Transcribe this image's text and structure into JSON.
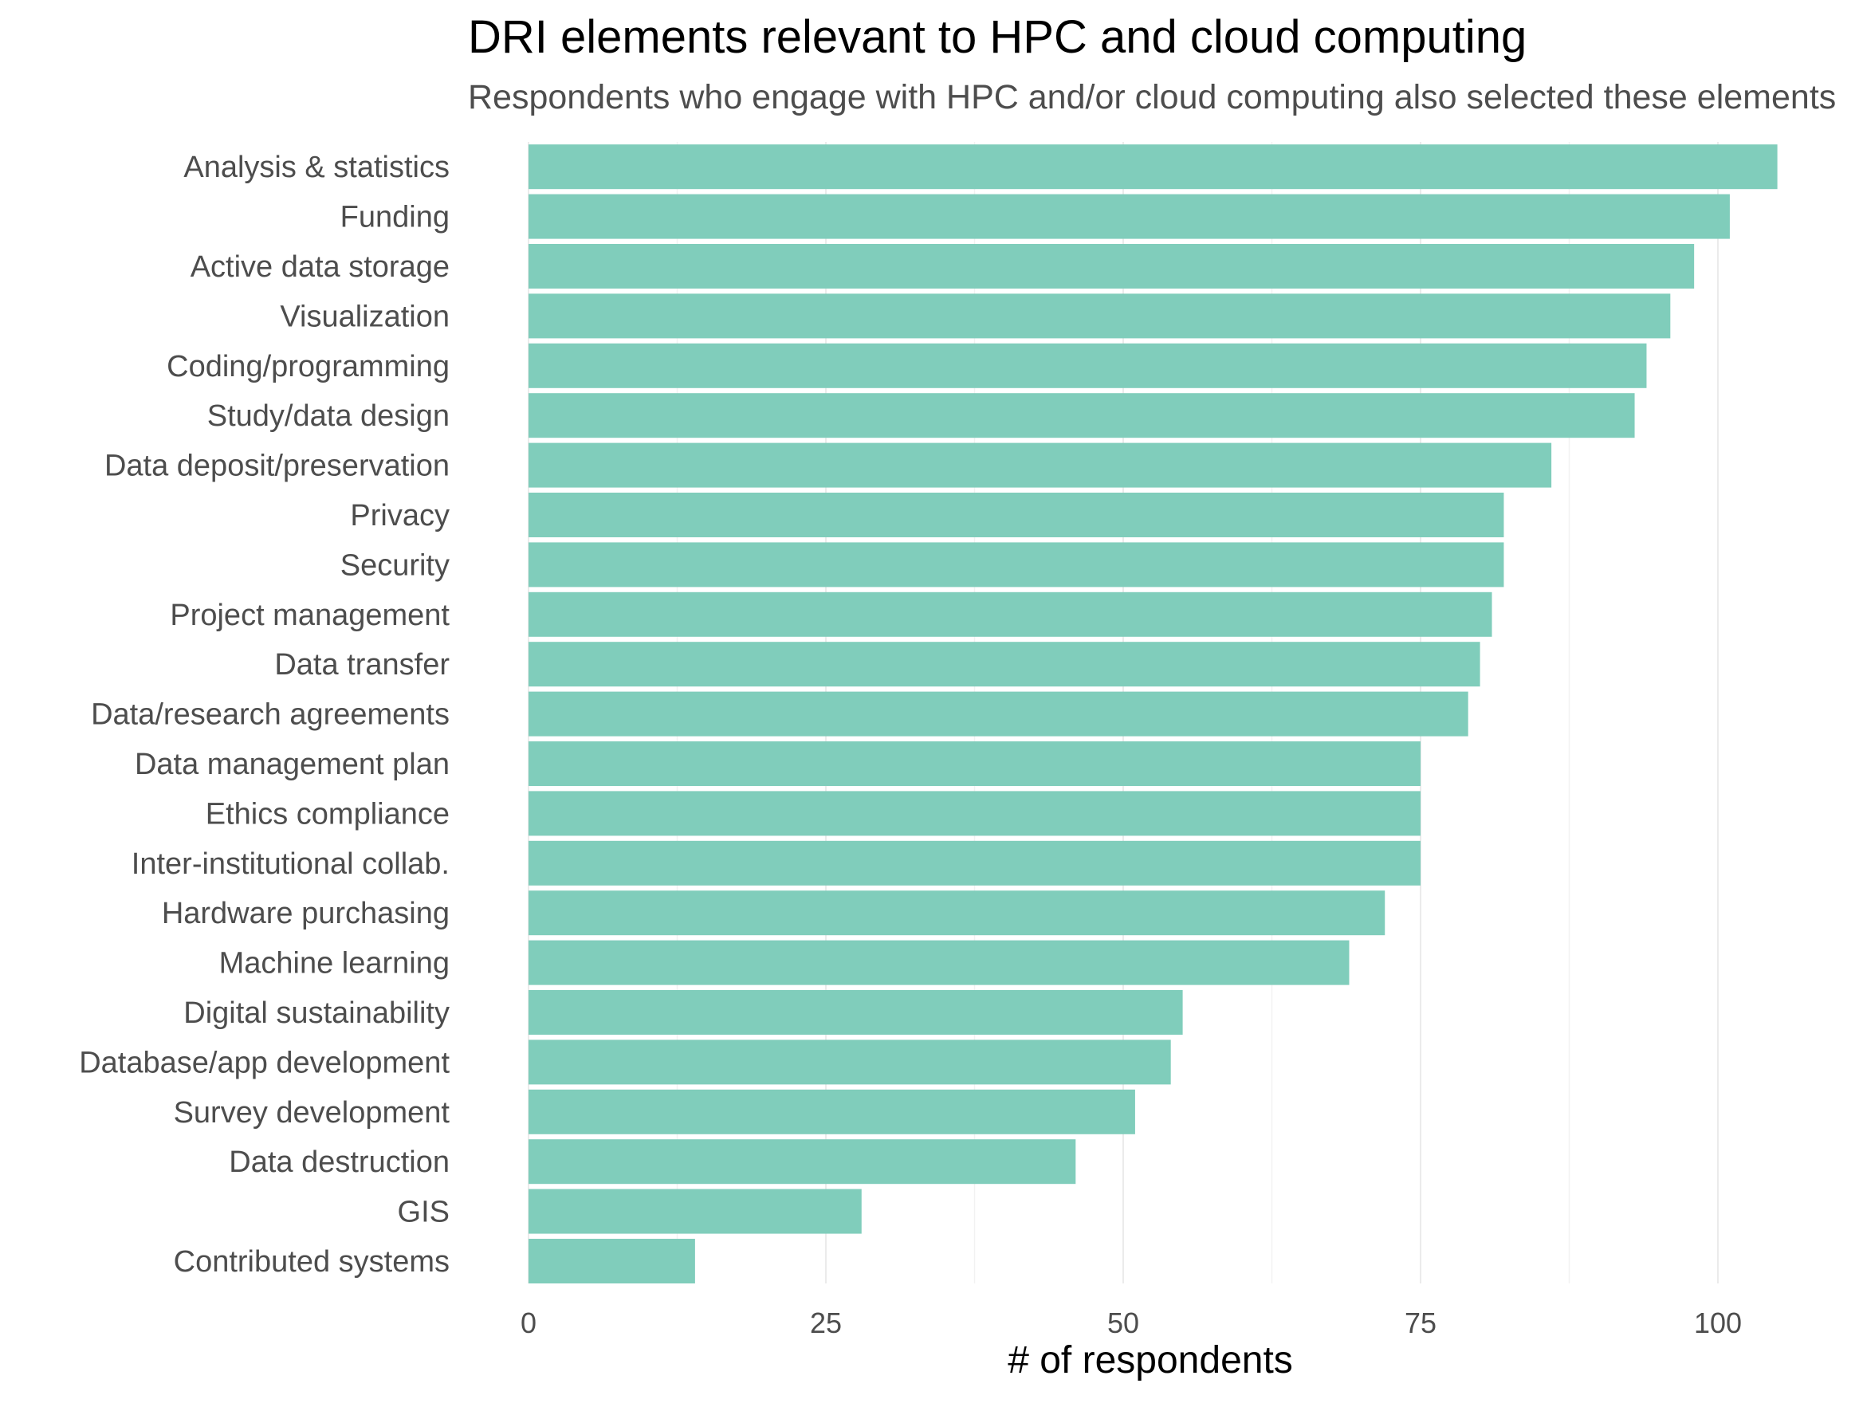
{
  "chart_data": {
    "type": "bar",
    "orientation": "horizontal",
    "title": "DRI elements relevant to HPC and cloud computing",
    "subtitle": "Respondents who engage with HPC and/or cloud computing also selected these elements",
    "xlabel": "# of respondents",
    "ylabel": "",
    "xlim": [
      0,
      106
    ],
    "xticks": [
      0,
      25,
      50,
      75,
      100
    ],
    "xtick_labels": [
      "0",
      "25",
      "50",
      "75",
      "100"
    ],
    "grid": "vertical",
    "legend": "none",
    "bar_color": "#80CDBB",
    "categories": [
      "Analysis & statistics",
      "Funding",
      "Active data storage",
      "Visualization",
      "Coding/programming",
      "Study/data design",
      "Data deposit/preservation",
      "Privacy",
      "Security",
      "Project management",
      "Data transfer",
      "Data/research agreements",
      "Data management plan",
      "Ethics compliance",
      "Inter-institutional collab.",
      "Hardware purchasing",
      "Machine learning",
      "Digital sustainability",
      "Database/app development",
      "Survey development",
      "Data destruction",
      "GIS",
      "Contributed systems"
    ],
    "values": [
      105,
      101,
      98,
      96,
      94,
      93,
      86,
      82,
      82,
      81,
      80,
      79,
      75,
      75,
      75,
      72,
      69,
      55,
      54,
      51,
      46,
      28,
      14
    ]
  }
}
